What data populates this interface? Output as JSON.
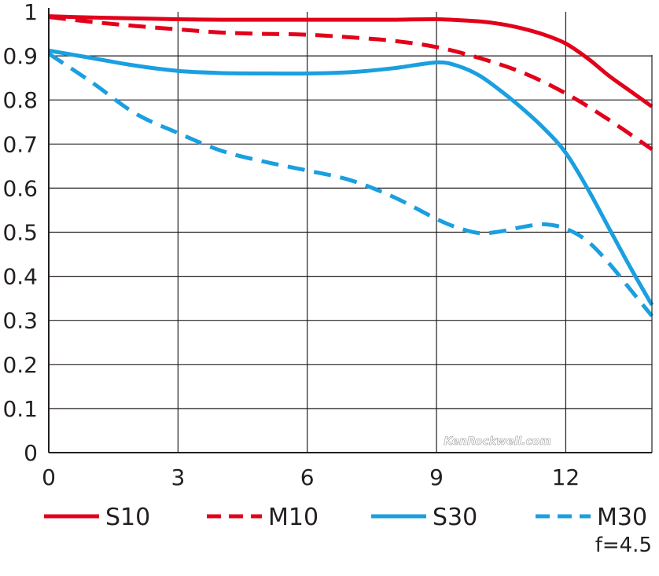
{
  "chart_data": {
    "type": "line",
    "title": "",
    "xlabel": "",
    "ylabel": "",
    "xlim": [
      0,
      14
    ],
    "ylim": [
      0,
      1
    ],
    "x_ticks": [
      "0",
      "3",
      "6",
      "9",
      "12"
    ],
    "x_tick_values": [
      0,
      3,
      6,
      9,
      12
    ],
    "y_ticks": [
      "0",
      "0.1",
      "0.2",
      "0.3",
      "0.4",
      "0.5",
      "0.6",
      "0.7",
      "0.8",
      "0.9",
      "1"
    ],
    "y_tick_values": [
      0,
      0.1,
      0.2,
      0.3,
      0.4,
      0.5,
      0.6,
      0.7,
      0.8,
      0.9,
      1.0
    ],
    "grid": true,
    "legend_position": "bottom",
    "series": [
      {
        "name": "S10",
        "color": "#e2001a",
        "dash": "solid",
        "points": [
          [
            0,
            0.99
          ],
          [
            1,
            0.987
          ],
          [
            2,
            0.985
          ],
          [
            3,
            0.983
          ],
          [
            4,
            0.982
          ],
          [
            5,
            0.982
          ],
          [
            6,
            0.982
          ],
          [
            7,
            0.982
          ],
          [
            8,
            0.982
          ],
          [
            9,
            0.983
          ],
          [
            10,
            0.978
          ],
          [
            10.5,
            0.972
          ],
          [
            11,
            0.962
          ],
          [
            11.5,
            0.948
          ],
          [
            12,
            0.928
          ],
          [
            12.5,
            0.895
          ],
          [
            13,
            0.855
          ],
          [
            13.5,
            0.82
          ],
          [
            14,
            0.785
          ]
        ]
      },
      {
        "name": "M10",
        "color": "#e2001a",
        "dash": "dashed",
        "points": [
          [
            0,
            0.988
          ],
          [
            1,
            0.977
          ],
          [
            2,
            0.968
          ],
          [
            3,
            0.96
          ],
          [
            4,
            0.953
          ],
          [
            5,
            0.95
          ],
          [
            6,
            0.948
          ],
          [
            7,
            0.942
          ],
          [
            8,
            0.934
          ],
          [
            9,
            0.92
          ],
          [
            10,
            0.895
          ],
          [
            11,
            0.862
          ],
          [
            12,
            0.815
          ],
          [
            13,
            0.755
          ],
          [
            14,
            0.688
          ]
        ]
      },
      {
        "name": "S30",
        "color": "#1a9fe0",
        "dash": "solid",
        "points": [
          [
            0,
            0.912
          ],
          [
            1,
            0.895
          ],
          [
            2,
            0.878
          ],
          [
            3,
            0.866
          ],
          [
            4,
            0.861
          ],
          [
            5,
            0.86
          ],
          [
            6,
            0.86
          ],
          [
            7,
            0.863
          ],
          [
            8,
            0.872
          ],
          [
            9,
            0.885
          ],
          [
            9.5,
            0.877
          ],
          [
            10,
            0.855
          ],
          [
            10.5,
            0.82
          ],
          [
            11,
            0.78
          ],
          [
            11.5,
            0.735
          ],
          [
            12,
            0.68
          ],
          [
            12.5,
            0.6
          ],
          [
            13,
            0.51
          ],
          [
            13.5,
            0.42
          ],
          [
            14,
            0.335
          ]
        ]
      },
      {
        "name": "M30",
        "color": "#1a9fe0",
        "dash": "dashed",
        "points": [
          [
            0,
            0.905
          ],
          [
            1,
            0.84
          ],
          [
            2,
            0.77
          ],
          [
            3,
            0.725
          ],
          [
            4,
            0.685
          ],
          [
            5,
            0.66
          ],
          [
            6,
            0.64
          ],
          [
            7,
            0.618
          ],
          [
            8,
            0.58
          ],
          [
            9,
            0.53
          ],
          [
            9.5,
            0.51
          ],
          [
            10,
            0.498
          ],
          [
            10.5,
            0.502
          ],
          [
            11,
            0.512
          ],
          [
            11.5,
            0.518
          ],
          [
            12,
            0.508
          ],
          [
            12.5,
            0.48
          ],
          [
            13,
            0.43
          ],
          [
            13.5,
            0.37
          ],
          [
            14,
            0.31
          ]
        ]
      }
    ],
    "annotations": [
      "f=4.5"
    ]
  },
  "watermark": "KenRockwell.com"
}
